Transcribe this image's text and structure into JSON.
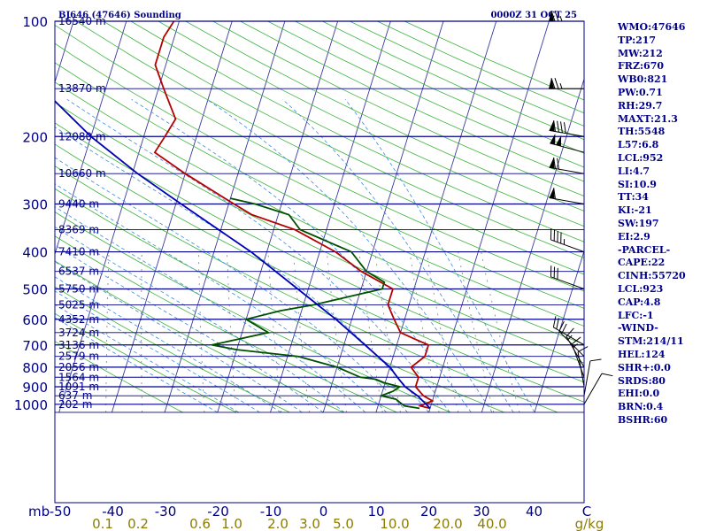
{
  "header": {
    "station": "BJ646 (47646) Sounding",
    "time": "0000Z 31 OCT 25"
  },
  "indices": [
    "WMO:47646",
    "TP:217",
    "MW:212",
    "FRZ:670",
    "WB0:821",
    "PW:0.71",
    "RH:29.7",
    "MAXT:21.3",
    "TH:5548",
    "L57:6.8",
    "LCL:952",
    "LI:4.7",
    "SI:10.9",
    "TT:34",
    "KI:-21",
    "SW:197",
    "EI:2.9",
    "-PARCEL-",
    "CAPE:22",
    "CINH:55720",
    "LCL:923",
    "CAP:4.8",
    "LFC:-1",
    "-WIND-",
    "STM:214/11",
    "HEL:124",
    "SHR+:0.0",
    "SRDS:80",
    "EHI:0.0",
    "BRN:0.4",
    "BSHR:60"
  ],
  "colors": {
    "isobar": "#00008b",
    "isotherm": "#3a3aa0",
    "dry_adiabat": "#3cb43c",
    "moist_adiabat": "#3c8ce0",
    "mixing_ratio": "#808080",
    "temperature": "#b40000",
    "dewpoint": "#005000",
    "parcel": "#0000b4"
  },
  "chart_data": {
    "type": "line",
    "diagram": "skew-T log-p",
    "yscale": "log",
    "pressure_levels": [
      100,
      200,
      300,
      400,
      500,
      600,
      700,
      800,
      900,
      1000
    ],
    "pressure_labels": [
      "100",
      "200",
      "300",
      "400",
      "500",
      "600",
      "700",
      "800",
      "900",
      "1000"
    ],
    "y_unit_label": "mb",
    "temperature_ticks": [
      "-50",
      "-40",
      "-30",
      "-20",
      "-10",
      "0",
      "10",
      "20",
      "30",
      "40",
      "C"
    ],
    "mixing_ratio_ticks": [
      "0.1",
      "0.2",
      "0.6",
      "1.0",
      "2.0",
      "3.0",
      "5.0",
      "10.0",
      "20.0",
      "40.0",
      "g/kg"
    ],
    "height_levels": [
      {
        "p": 100,
        "label": "16540 m"
      },
      {
        "p": 150,
        "label": "13870 m"
      },
      {
        "p": 200,
        "label": "12080 m"
      },
      {
        "p": 250,
        "label": "10660 m"
      },
      {
        "p": 300,
        "label": "9440 m"
      },
      {
        "p": 350,
        "label": "8369 m"
      },
      {
        "p": 400,
        "label": "7410 m"
      },
      {
        "p": 450,
        "label": "6537 m"
      },
      {
        "p": 500,
        "label": "5750 m"
      },
      {
        "p": 550,
        "label": "5025 m"
      },
      {
        "p": 600,
        "label": "4352 m"
      },
      {
        "p": 650,
        "label": "3724 m"
      },
      {
        "p": 700,
        "label": "3136 m"
      },
      {
        "p": 750,
        "label": "2579 m"
      },
      {
        "p": 800,
        "label": "2056 m"
      },
      {
        "p": 850,
        "label": "1564 m"
      },
      {
        "p": 900,
        "label": "1091 m"
      },
      {
        "p": 950,
        "label": "637 m"
      },
      {
        "p": 1000,
        "label": "202 m"
      }
    ],
    "series": [
      {
        "key": "temperature",
        "points": [
          [
            1025,
            20
          ],
          [
            1010,
            18
          ],
          [
            980,
            20
          ],
          [
            950,
            18
          ],
          [
            900,
            16
          ],
          [
            850,
            16
          ],
          [
            800,
            14
          ],
          [
            775,
            15
          ],
          [
            750,
            16
          ],
          [
            720,
            16
          ],
          [
            700,
            16
          ],
          [
            675,
            13
          ],
          [
            650,
            10
          ],
          [
            600,
            8
          ],
          [
            550,
            6
          ],
          [
            500,
            6
          ],
          [
            450,
            -1
          ],
          [
            400,
            -7
          ],
          [
            350,
            -16
          ],
          [
            320,
            -25
          ],
          [
            300,
            -29
          ],
          [
            250,
            -40
          ],
          [
            220,
            -47
          ],
          [
            200,
            -46
          ],
          [
            180,
            -45
          ],
          [
            150,
            -49
          ],
          [
            130,
            -52
          ],
          [
            110,
            -52
          ],
          [
            100,
            -51
          ]
        ]
      },
      {
        "key": "dewpoint",
        "points": [
          [
            1025,
            18
          ],
          [
            1010,
            15
          ],
          [
            990,
            14
          ],
          [
            970,
            13
          ],
          [
            950,
            10
          ],
          [
            925,
            12
          ],
          [
            900,
            13
          ],
          [
            880,
            10
          ],
          [
            860,
            8
          ],
          [
            850,
            5
          ],
          [
            800,
            0
          ],
          [
            750,
            -8
          ],
          [
            720,
            -20
          ],
          [
            700,
            -25
          ],
          [
            650,
            -15
          ],
          [
            600,
            -20
          ],
          [
            570,
            -14
          ],
          [
            550,
            -8
          ],
          [
            520,
            -1
          ],
          [
            500,
            4
          ],
          [
            480,
            4
          ],
          [
            450,
            0
          ],
          [
            400,
            -4
          ],
          [
            350,
            -15
          ],
          [
            320,
            -18
          ],
          [
            300,
            -25
          ],
          [
            290,
            -30
          ]
        ]
      },
      {
        "key": "parcel",
        "points": [
          [
            1025,
            20
          ],
          [
            1000,
            19
          ],
          [
            952,
            17
          ],
          [
            900,
            14
          ],
          [
            850,
            12
          ],
          [
            800,
            10
          ],
          [
            700,
            4
          ],
          [
            600,
            -3
          ],
          [
            500,
            -12
          ],
          [
            400,
            -23
          ],
          [
            300,
            -39
          ],
          [
            250,
            -49
          ],
          [
            200,
            -60
          ],
          [
            150,
            -72
          ],
          [
            135,
            -75
          ]
        ]
      }
    ],
    "wind_barbs": [
      {
        "p": 100,
        "dir": 270,
        "speed": 75
      },
      {
        "p": 150,
        "dir": 270,
        "speed": 75
      },
      {
        "p": 200,
        "dir": 280,
        "speed": 90
      },
      {
        "p": 220,
        "dir": 285,
        "speed": 100
      },
      {
        "p": 250,
        "dir": 280,
        "speed": 70
      },
      {
        "p": 300,
        "dir": 280,
        "speed": 60
      },
      {
        "p": 400,
        "dir": 290,
        "speed": 45
      },
      {
        "p": 500,
        "dir": 290,
        "speed": 30
      },
      {
        "p": 700,
        "dir": 300,
        "speed": 20
      },
      {
        "p": 750,
        "dir": 315,
        "speed": 20
      },
      {
        "p": 800,
        "dir": 330,
        "speed": 15
      },
      {
        "p": 850,
        "dir": 340,
        "speed": 15
      },
      {
        "p": 900,
        "dir": 350,
        "speed": 10
      },
      {
        "p": 950,
        "dir": 10,
        "speed": 10
      },
      {
        "p": 1000,
        "dir": 30,
        "speed": 10
      }
    ],
    "grid": true
  }
}
